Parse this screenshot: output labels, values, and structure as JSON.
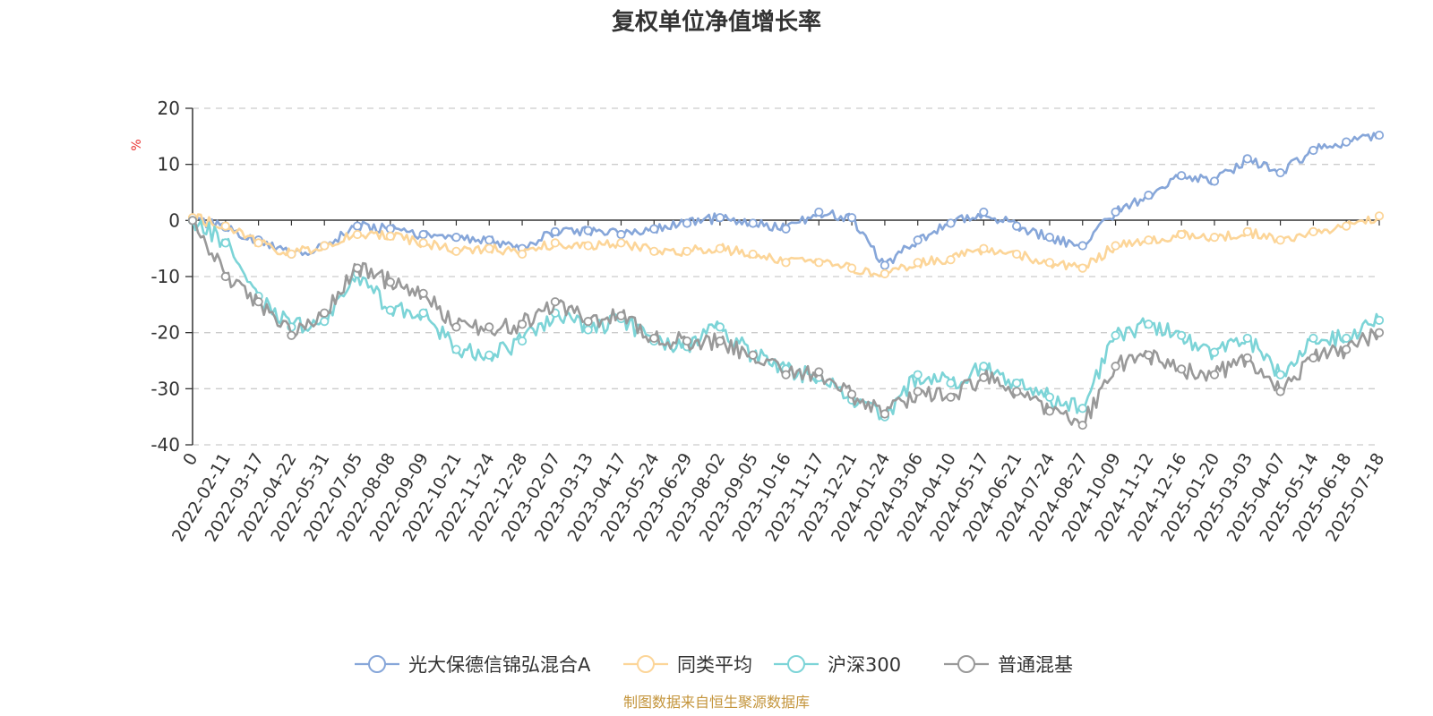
{
  "chart_data": {
    "type": "line",
    "title": "复权单位净值增长率",
    "ylabel": "%",
    "ylim": [
      -40,
      20
    ],
    "yticks": [
      -40,
      -30,
      -20,
      -10,
      0,
      10,
      20
    ],
    "grid": true,
    "legend_position": "bottom",
    "x": [
      "0",
      "2022-02-11",
      "2022-03-17",
      "2022-04-22",
      "2022-05-31",
      "2022-07-05",
      "2022-08-08",
      "2022-09-09",
      "2022-10-21",
      "2022-11-24",
      "2022-12-28",
      "2023-02-07",
      "2023-03-13",
      "2023-04-17",
      "2023-05-24",
      "2023-06-29",
      "2023-08-02",
      "2023-09-05",
      "2023-10-16",
      "2023-11-17",
      "2023-12-21",
      "2024-01-24",
      "2024-03-06",
      "2024-04-10",
      "2024-05-17",
      "2024-06-21",
      "2024-07-24",
      "2024-08-27",
      "2024-10-09",
      "2024-11-12",
      "2024-12-16",
      "2025-01-20",
      "2025-03-03",
      "2025-04-07",
      "2025-05-14",
      "2025-06-18",
      "2025-07-18"
    ],
    "series": [
      {
        "name": "光大保德信锦弘混合A",
        "color": "#86a6d9",
        "values": [
          0,
          -1.2,
          -3.5,
          -6.0,
          -4.5,
          -1.0,
          -1.5,
          -2.5,
          -3.0,
          -3.5,
          -5.0,
          -2.0,
          -1.8,
          -2.5,
          -1.5,
          -0.5,
          0.5,
          -0.5,
          -1.5,
          1.5,
          0.5,
          -8.0,
          -3.5,
          -0.5,
          1.5,
          -1.0,
          -3.0,
          -4.5,
          1.5,
          4.5,
          8.0,
          7.0,
          11.0,
          8.5,
          12.5,
          14.0,
          15.2
        ]
      },
      {
        "name": "同类平均",
        "color": "#fcd598",
        "values": [
          0.5,
          -1.0,
          -4.0,
          -6.0,
          -4.5,
          -2.5,
          -2.8,
          -4.0,
          -5.5,
          -5.0,
          -6.0,
          -4.0,
          -4.5,
          -4.0,
          -5.5,
          -5.5,
          -5.0,
          -6.0,
          -7.5,
          -7.5,
          -8.5,
          -9.5,
          -7.5,
          -7.0,
          -5.0,
          -6.0,
          -7.5,
          -8.5,
          -4.5,
          -3.5,
          -2.5,
          -3.0,
          -2.0,
          -3.5,
          -2.0,
          -1.0,
          0.8
        ]
      },
      {
        "name": "沪深300",
        "color": "#7cd4d7",
        "values": [
          0,
          -4.0,
          -13.5,
          -19.0,
          -18.0,
          -9.5,
          -16.0,
          -16.5,
          -23.0,
          -24.0,
          -21.5,
          -16.5,
          -19.5,
          -17.5,
          -21.5,
          -22.5,
          -19.0,
          -24.0,
          -26.5,
          -28.0,
          -32.0,
          -35.0,
          -27.5,
          -29.0,
          -26.0,
          -29.0,
          -31.5,
          -33.5,
          -20.5,
          -18.5,
          -20.5,
          -23.5,
          -21.0,
          -27.5,
          -21.0,
          -21.0,
          -17.8
        ]
      },
      {
        "name": "普通混基",
        "color": "#999999",
        "values": [
          0,
          -10.0,
          -14.5,
          -20.5,
          -16.5,
          -8.5,
          -11.0,
          -13.0,
          -19.0,
          -19.0,
          -18.5,
          -14.5,
          -18.0,
          -17.0,
          -21.0,
          -21.5,
          -21.5,
          -24.0,
          -27.5,
          -27.0,
          -31.0,
          -34.5,
          -30.5,
          -31.5,
          -28.0,
          -30.5,
          -34.0,
          -36.5,
          -26.0,
          -24.0,
          -26.5,
          -27.5,
          -24.5,
          -30.5,
          -24.5,
          -23.0,
          -20.0
        ]
      }
    ],
    "source": "制图数据来自恒生聚源数据库"
  },
  "colors": {
    "title": "#333333",
    "axis": "#333333",
    "grid": "#cccccc",
    "unit": "#e8312f",
    "source": "#c4953c"
  }
}
